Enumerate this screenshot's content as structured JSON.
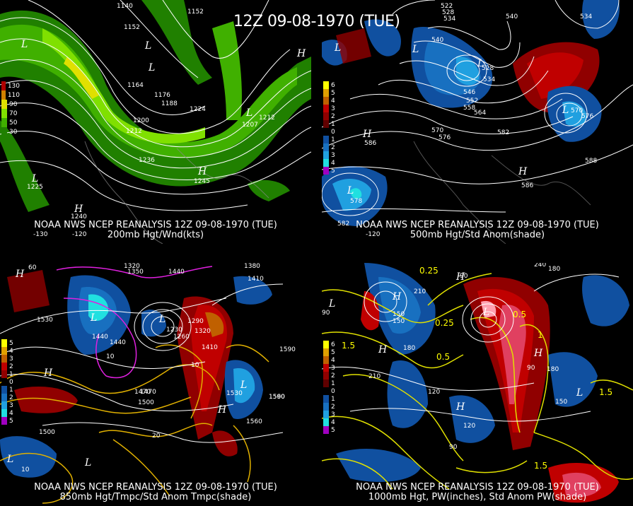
{
  "main_title": "12Z 09-08-1970 (TUE)",
  "panels": [
    {
      "caption_line1": "NOAA NWS NCEP REANALYSIS 12Z 09-08-1970 (TUE)",
      "caption_line2": "200mb Hgt/Wnd(kts)",
      "legend": [
        "130",
        "110",
        "90",
        "70",
        "50",
        "30"
      ],
      "legend_colors": [
        "#b00000",
        "#d08000",
        "#e0e000",
        "#80e000",
        "#40b000",
        "#208000"
      ],
      "contour_labels": [
        "1140",
        "1152",
        "1152",
        "1164",
        "1176",
        "1188",
        "1200",
        "1212",
        "1224",
        "1236",
        "1245",
        "1225",
        "1240",
        "1212",
        "1207"
      ]
    },
    {
      "caption_line1": "NOAA NWS NCEP REANALYSIS 12Z 09-08-1970 (TUE)",
      "caption_line2": "500mb Hgt/Std Anom(shade)",
      "legend": [
        "6",
        "5",
        "4",
        "3",
        "2",
        "1",
        "0",
        "1",
        "2",
        "3",
        "4",
        "5"
      ],
      "legend_colors": [
        "#ffff00",
        "#e0a000",
        "#c06000",
        "#c00000",
        "#900000",
        "#600000",
        "#000000",
        "#1050a0",
        "#1870c0",
        "#20a0e0",
        "#20e0e0",
        "#a000c0"
      ],
      "contour_labels": [
        "522",
        "528",
        "534",
        "540",
        "546",
        "552",
        "558",
        "564",
        "570",
        "576",
        "582",
        "588",
        "586",
        "578",
        "582",
        "528",
        "534",
        "570",
        "576",
        "588",
        "586",
        "540",
        "534"
      ]
    },
    {
      "caption_line1": "NOAA NWS NCEP REANALYSIS 12Z 09-08-1970 (TUE)",
      "caption_line2": "850mb Hgt/Tmpc/Std Anom Tmpc(shade)",
      "legend": [
        "5",
        "4",
        "3",
        "2",
        "1",
        "0",
        "1",
        "2",
        "3",
        "4",
        "5"
      ],
      "legend_colors": [
        "#ffff00",
        "#e0a000",
        "#c06000",
        "#c00000",
        "#900000",
        "#000000",
        "#1050a0",
        "#1870c0",
        "#20a0e0",
        "#20e0e0",
        "#a000c0"
      ],
      "contour_labels": [
        "1320",
        "1350",
        "1380",
        "1440",
        "1410",
        "1530",
        "1440",
        "1470",
        "1500",
        "1560",
        "1590",
        "1500",
        "1530",
        "1410",
        "1320",
        "1290",
        "1260",
        "1230",
        "1590",
        "1560",
        "1500",
        "1470",
        "1440",
        "10",
        "20",
        "10",
        "10"
      ]
    },
    {
      "caption_line1": "NOAA NWS NCEP REANALYSIS 12Z 09-08-1970 (TUE)",
      "caption_line2": "1000mb Hgt, PW(inches), Std Anom PW(shade)",
      "legend": [
        "6",
        "5",
        "4",
        "3",
        "2",
        "1",
        "0",
        "1",
        "2",
        "3",
        "4",
        "5"
      ],
      "legend_colors": [
        "#ffff00",
        "#e0a000",
        "#c06000",
        "#c00000",
        "#900000",
        "#600000",
        "#000000",
        "#1050a0",
        "#1870c0",
        "#20a0e0",
        "#20e0e0",
        "#a000c0"
      ],
      "contour_labels": [
        "240",
        "180",
        "90",
        "150",
        "210",
        "90",
        "0.25",
        "0.5",
        "1",
        "1.5",
        "150",
        "180",
        "210",
        "90",
        "120",
        "180",
        "150",
        "120",
        "90",
        "1.5",
        "1.5",
        "0.5",
        "0.25"
      ]
    }
  ],
  "lon_labels": [
    "-130",
    "-120"
  ],
  "lat_labels": [
    "60"
  ]
}
